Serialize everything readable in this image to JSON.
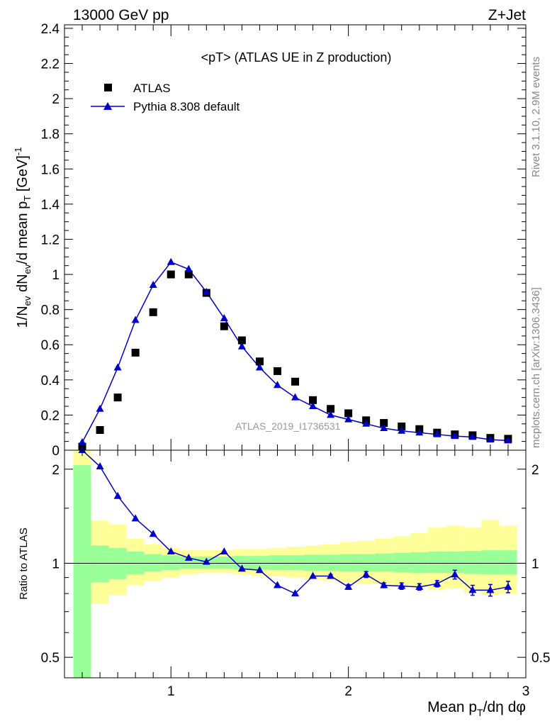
{
  "header": {
    "left": "13000 GeV pp",
    "right": "Z+Jet"
  },
  "side_labels": {
    "rivet": "Rivet 3.1.10,  2.9M events",
    "mcplots": "mcplots.cern.ch [arXiv:1306.3436]"
  },
  "watermark": "ATLAS_2019_I1736531",
  "colors": {
    "data": "#000000",
    "mc": "#0000cc",
    "band_inner": "#99ff99",
    "band_outer": "#ffff99"
  },
  "chart_data": [
    {
      "type": "scatter",
      "panel": "main",
      "title": "<pT> (ATLAS UE in Z production)",
      "ylabel": "1/N_ev dN_ev/d mean p_T [GeV]^-1",
      "xlim": [
        0.4,
        3.0
      ],
      "ylim": [
        0,
        2.42
      ],
      "yticks": [
        0,
        0.2,
        0.4,
        0.6,
        0.8,
        1,
        1.2,
        1.4,
        1.6,
        1.8,
        2,
        2.2,
        2.4
      ],
      "ytick_labels": [
        "0",
        "0.2",
        "0.4",
        "0.6",
        "0.8",
        "1",
        "1.2",
        "1.4",
        "1.6",
        "1.8",
        "2",
        "2.2",
        "2.4"
      ],
      "legend_position": "top-left",
      "x": [
        0.5,
        0.6,
        0.7,
        0.8,
        0.9,
        1.0,
        1.1,
        1.2,
        1.3,
        1.4,
        1.5,
        1.6,
        1.7,
        1.8,
        1.9,
        2.0,
        2.1,
        2.2,
        2.3,
        2.4,
        2.5,
        2.6,
        2.7,
        2.8,
        2.9
      ],
      "series": [
        {
          "name": "ATLAS",
          "marker": "square",
          "values": [
            0.02,
            0.115,
            0.3,
            0.555,
            0.785,
            1.0,
            1.0,
            0.895,
            0.705,
            0.625,
            0.505,
            0.45,
            0.39,
            0.285,
            0.235,
            0.21,
            0.17,
            0.155,
            0.135,
            0.12,
            0.1,
            0.09,
            0.085,
            0.07,
            0.065
          ]
        },
        {
          "name": "Pythia 8.308 default",
          "marker": "triangle",
          "values": [
            0.045,
            0.235,
            0.47,
            0.74,
            0.94,
            1.07,
            1.03,
            0.9,
            0.75,
            0.59,
            0.47,
            0.37,
            0.3,
            0.25,
            0.2,
            0.175,
            0.15,
            0.125,
            0.11,
            0.1,
            0.09,
            0.08,
            0.075,
            0.06,
            0.055
          ]
        }
      ]
    },
    {
      "type": "line",
      "panel": "ratio",
      "ylabel": "Ratio to ATLAS",
      "xlabel": "Mean p_T/dη dφ",
      "xlim": [
        0.4,
        3.0
      ],
      "ylim": [
        0.43,
        2.3
      ],
      "log_y": true,
      "yticks": [
        0.5,
        1,
        2
      ],
      "ytick_labels": [
        "0.5",
        "1",
        "2"
      ],
      "xticks": [
        1,
        2,
        3
      ],
      "xtick_labels": [
        "1",
        "2",
        "3"
      ],
      "x": [
        0.5,
        0.6,
        0.7,
        0.8,
        0.9,
        1.0,
        1.1,
        1.2,
        1.3,
        1.4,
        1.5,
        1.6,
        1.7,
        1.8,
        1.9,
        2.0,
        2.1,
        2.2,
        2.3,
        2.4,
        2.5,
        2.6,
        2.7,
        2.8,
        2.9
      ],
      "series": [
        {
          "name": "Pythia 8.308 default",
          "values": [
            2.3,
            2.04,
            1.64,
            1.39,
            1.24,
            1.09,
            1.04,
            1.01,
            1.09,
            0.96,
            0.95,
            0.85,
            0.8,
            0.91,
            0.91,
            0.84,
            0.92,
            0.85,
            0.845,
            0.84,
            0.86,
            0.92,
            0.82,
            0.82,
            0.84
          ],
          "errors": [
            0.0,
            0.0,
            0.0,
            0.0,
            0.0,
            0.0,
            0.0,
            0.0,
            0.0,
            0.0,
            0.0,
            0.0,
            0.0,
            0.0,
            0.01,
            0.015,
            0.02,
            0.015,
            0.02,
            0.02,
            0.02,
            0.03,
            0.03,
            0.035,
            0.035
          ]
        }
      ],
      "band_inner": {
        "lo": [
          0.3,
          0.87,
          0.89,
          0.92,
          0.94,
          0.95,
          0.96,
          0.96,
          0.96,
          0.955,
          0.955,
          0.95,
          0.95,
          0.945,
          0.945,
          0.94,
          0.94,
          0.94,
          0.935,
          0.93,
          0.93,
          0.93,
          0.925,
          0.92,
          0.92
        ],
        "hi": [
          2.06,
          1.14,
          1.12,
          1.09,
          1.07,
          1.06,
          1.05,
          1.05,
          1.05,
          1.055,
          1.055,
          1.06,
          1.06,
          1.065,
          1.065,
          1.07,
          1.07,
          1.075,
          1.08,
          1.085,
          1.09,
          1.09,
          1.095,
          1.1,
          1.1
        ]
      },
      "band_outer": {
        "lo": [
          0.3,
          0.74,
          0.79,
          0.85,
          0.88,
          0.9,
          0.92,
          0.93,
          0.93,
          0.92,
          0.91,
          0.91,
          0.9,
          0.89,
          0.88,
          0.87,
          0.86,
          0.86,
          0.85,
          0.84,
          0.82,
          0.83,
          0.81,
          0.79,
          0.8
        ],
        "hi": [
          2.3,
          1.37,
          1.33,
          1.2,
          1.15,
          1.12,
          1.1,
          1.1,
          1.1,
          1.11,
          1.11,
          1.12,
          1.13,
          1.14,
          1.15,
          1.17,
          1.18,
          1.2,
          1.22,
          1.25,
          1.3,
          1.32,
          1.3,
          1.38,
          1.32
        ]
      }
    }
  ]
}
